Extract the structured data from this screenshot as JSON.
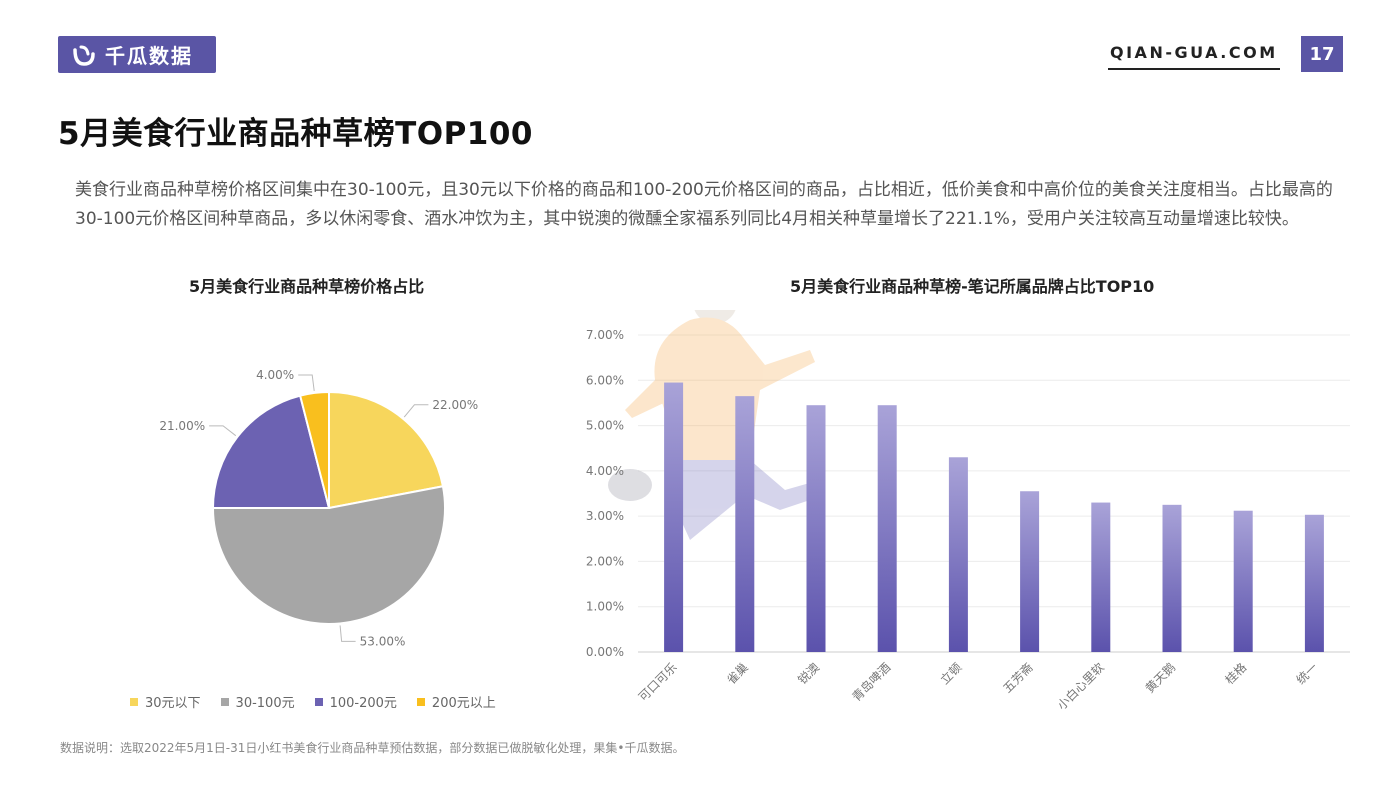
{
  "header": {
    "logo_text": "千瓜数据",
    "site": "QIAN-GUA.COM",
    "page_number": "17"
  },
  "colors": {
    "brand": "#5a55a5",
    "pie": [
      "#f7d65c",
      "#a6a6a6",
      "#6c62b2",
      "#f9bf1e"
    ]
  },
  "title": "5月美食行业商品种草榜TOP100",
  "description": "美食行业商品种草榜价格区间集中在30-100元，且30元以下价格的商品和100-200元价格区间的商品，占比相近，低价美食和中高价位的美食关注度相当。占比最高的30-100元价格区间种草商品，多以休闲零食、酒水冲饮为主，其中锐澳的微醺全家福系列同比4月相关种草量增长了221.1%，受用户关注较高互动量增速比较快。",
  "footnote": "数据说明：选取2022年5月1日-31日小红书美食行业商品种草预估数据，部分数据已做脱敏化处理，果集•千瓜数据。",
  "chart_data": [
    {
      "type": "pie",
      "title": "5月美食行业商品种草榜价格占比",
      "categories": [
        "30元以下",
        "30-100元",
        "100-200元",
        "200元以上"
      ],
      "values": [
        22.0,
        53.0,
        21.0,
        4.0
      ],
      "data_labels": [
        "22.00%",
        "53.00%",
        "21.00%",
        "4.00%"
      ],
      "legend": "bottom"
    },
    {
      "type": "bar",
      "title": "5月美食行业商品种草榜-笔记所属品牌占比TOP10",
      "categories": [
        "可口可乐",
        "雀巢",
        "锐澳",
        "青岛啤酒",
        "立顿",
        "五芳斋",
        "小白心里软",
        "黄天鹅",
        "桂格",
        "统一"
      ],
      "values": [
        5.95,
        5.65,
        5.45,
        5.45,
        4.3,
        3.55,
        3.3,
        3.25,
        3.12,
        3.03
      ],
      "ylim": [
        0,
        7
      ],
      "yticks": [
        "0.00%",
        "1.00%",
        "2.00%",
        "3.00%",
        "4.00%",
        "5.00%",
        "6.00%",
        "7.00%"
      ],
      "grid": true
    }
  ]
}
